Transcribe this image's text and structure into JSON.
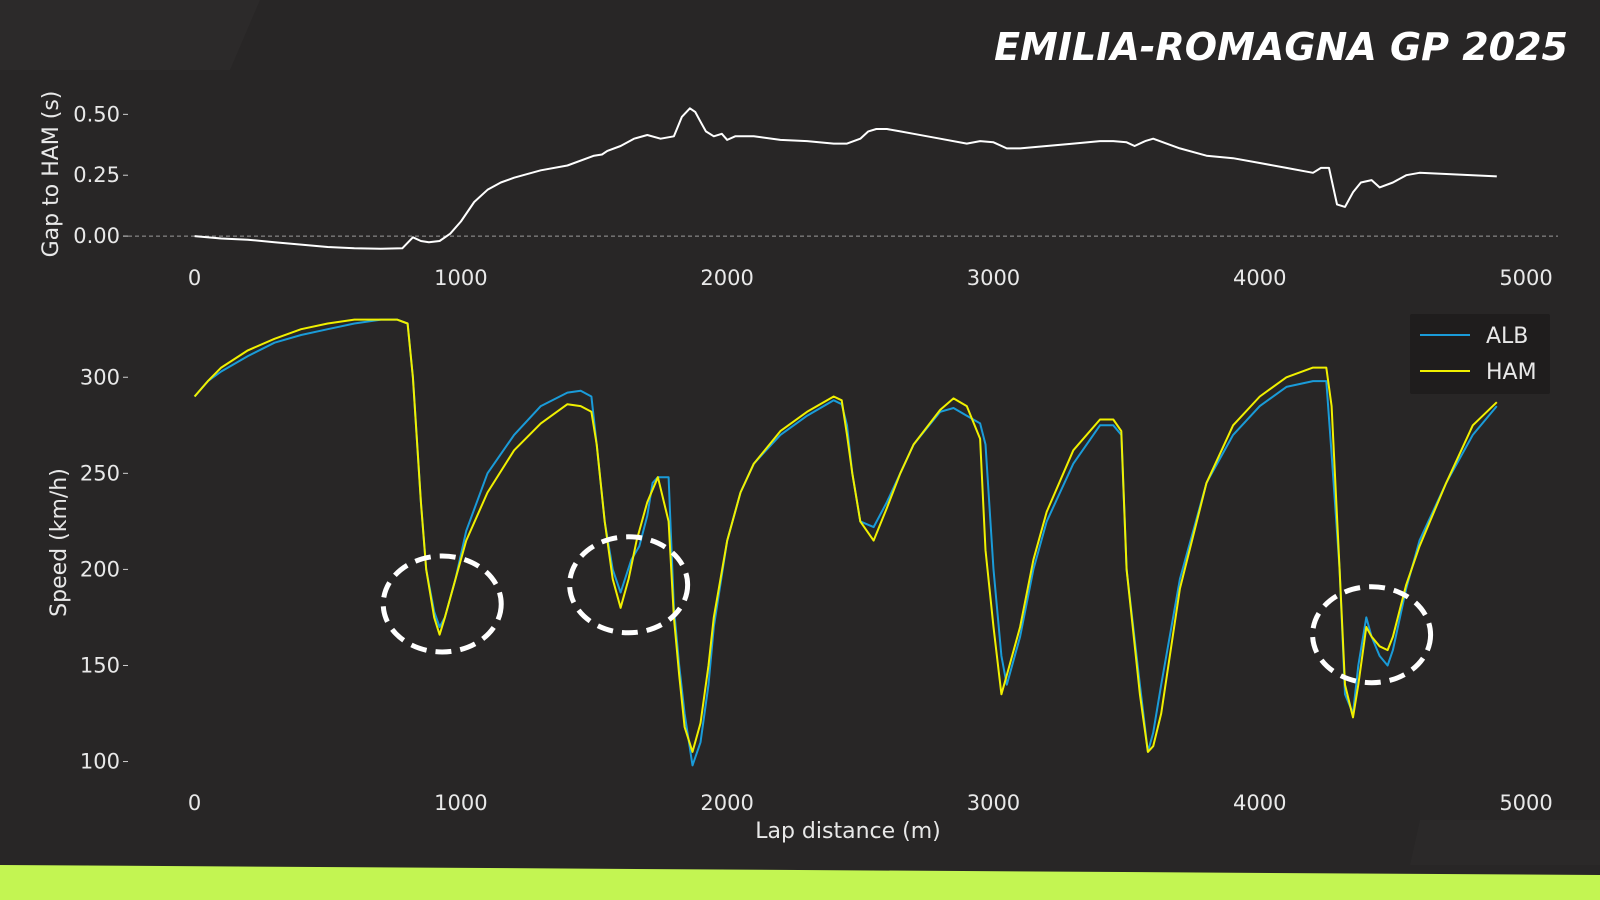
{
  "title": "EMILIA-ROMAGNA GP 2025",
  "colors": {
    "background": "#282626",
    "ALB": "#1a9bd8",
    "HAM": "#f0f000",
    "gap": "#ffffff",
    "band": "#c3f552",
    "circle": "#ffffff"
  },
  "chart_data": [
    {
      "type": "line",
      "ylabel": "Gap to HAM (s)",
      "xlabel": "",
      "xlim": [
        -250,
        5120
      ],
      "ylim": [
        -0.09,
        0.6
      ],
      "xticks": [
        "0",
        "1000",
        "2000",
        "3000",
        "4000",
        "5000"
      ],
      "yticks": [
        "0.00",
        "0.25",
        "0.50"
      ],
      "zero_line": true,
      "series": [
        {
          "key": "gap",
          "x": [
            0,
            100,
            200,
            300,
            400,
            500,
            600,
            700,
            780,
            820,
            850,
            880,
            920,
            960,
            1000,
            1050,
            1100,
            1150,
            1200,
            1300,
            1400,
            1500,
            1530,
            1550,
            1600,
            1650,
            1700,
            1750,
            1800,
            1830,
            1860,
            1880,
            1900,
            1920,
            1950,
            1980,
            2000,
            2030,
            2100,
            2200,
            2300,
            2400,
            2450,
            2500,
            2530,
            2560,
            2600,
            2650,
            2700,
            2800,
            2900,
            2950,
            3000,
            3050,
            3100,
            3200,
            3300,
            3400,
            3450,
            3500,
            3530,
            3570,
            3600,
            3650,
            3700,
            3800,
            3900,
            4000,
            4100,
            4200,
            4230,
            4260,
            4290,
            4320,
            4350,
            4380,
            4420,
            4450,
            4500,
            4550,
            4600,
            4700,
            4800,
            4890
          ],
          "y": [
            0,
            -0.01,
            -0.015,
            -0.025,
            -0.035,
            -0.045,
            -0.05,
            -0.052,
            -0.05,
            -0.005,
            -0.02,
            -0.025,
            -0.02,
            0.01,
            0.06,
            0.14,
            0.19,
            0.22,
            0.24,
            0.27,
            0.29,
            0.33,
            0.335,
            0.35,
            0.37,
            0.4,
            0.415,
            0.4,
            0.41,
            0.49,
            0.525,
            0.51,
            0.47,
            0.43,
            0.41,
            0.42,
            0.395,
            0.41,
            0.41,
            0.395,
            0.39,
            0.38,
            0.38,
            0.4,
            0.43,
            0.44,
            0.44,
            0.43,
            0.42,
            0.4,
            0.38,
            0.39,
            0.385,
            0.36,
            0.36,
            0.37,
            0.38,
            0.39,
            0.39,
            0.385,
            0.37,
            0.39,
            0.4,
            0.38,
            0.36,
            0.33,
            0.32,
            0.3,
            0.28,
            0.26,
            0.28,
            0.28,
            0.13,
            0.12,
            0.18,
            0.22,
            0.23,
            0.2,
            0.22,
            0.25,
            0.26,
            0.255,
            0.25,
            0.245
          ]
        }
      ]
    },
    {
      "type": "line",
      "ylabel": "Speed (km/h)",
      "xlabel": "Lap distance (m)",
      "xlim": [
        -250,
        5120
      ],
      "ylim": [
        93,
        335
      ],
      "xticks": [
        "0",
        "1000",
        "2000",
        "3000",
        "4000",
        "5000"
      ],
      "yticks": [
        "100",
        "150",
        "200",
        "250",
        "300"
      ],
      "legend_position": "top-right",
      "series": [
        {
          "name": "ALB",
          "key": "ALB",
          "x": [
            0,
            50,
            100,
            200,
            300,
            400,
            500,
            600,
            700,
            760,
            800,
            820,
            850,
            870,
            900,
            920,
            940,
            980,
            1020,
            1100,
            1200,
            1300,
            1400,
            1450,
            1490,
            1510,
            1540,
            1570,
            1600,
            1640,
            1670,
            1700,
            1720,
            1740,
            1780,
            1800,
            1820,
            1840,
            1870,
            1900,
            1930,
            1950,
            2000,
            2050,
            2100,
            2200,
            2300,
            2400,
            2430,
            2450,
            2470,
            2500,
            2550,
            2600,
            2650,
            2700,
            2800,
            2850,
            2900,
            2950,
            2970,
            3000,
            3030,
            3050,
            3100,
            3150,
            3200,
            3300,
            3400,
            3450,
            3480,
            3500,
            3550,
            3580,
            3600,
            3630,
            3700,
            3800,
            3900,
            4000,
            4100,
            4200,
            4250,
            4270,
            4300,
            4320,
            4350,
            4370,
            4400,
            4420,
            4450,
            4480,
            4500,
            4550,
            4600,
            4700,
            4800,
            4890
          ],
          "y": [
            290,
            298,
            303,
            311,
            318,
            322,
            325,
            328,
            330,
            330,
            328,
            300,
            235,
            200,
            178,
            170,
            175,
            195,
            220,
            250,
            270,
            285,
            292,
            293,
            290,
            265,
            225,
            200,
            188,
            205,
            212,
            228,
            245,
            248,
            248,
            180,
            150,
            125,
            98,
            110,
            140,
            170,
            215,
            240,
            255,
            270,
            280,
            288,
            286,
            275,
            250,
            225,
            222,
            235,
            250,
            265,
            282,
            284,
            280,
            276,
            265,
            200,
            155,
            140,
            165,
            200,
            225,
            255,
            275,
            275,
            270,
            200,
            140,
            105,
            115,
            140,
            195,
            245,
            270,
            285,
            295,
            298,
            298,
            260,
            200,
            135,
            125,
            150,
            175,
            165,
            155,
            150,
            158,
            190,
            215,
            245,
            270,
            285
          ]
        },
        {
          "name": "HAM",
          "key": "HAM",
          "x": [
            0,
            50,
            100,
            200,
            300,
            400,
            500,
            600,
            700,
            760,
            800,
            820,
            850,
            870,
            900,
            920,
            940,
            960,
            980,
            1020,
            1100,
            1200,
            1300,
            1400,
            1450,
            1490,
            1510,
            1540,
            1570,
            1600,
            1630,
            1660,
            1700,
            1740,
            1780,
            1800,
            1820,
            1840,
            1870,
            1900,
            1930,
            1950,
            2000,
            2050,
            2100,
            2200,
            2300,
            2400,
            2430,
            2450,
            2470,
            2500,
            2550,
            2600,
            2650,
            2700,
            2800,
            2850,
            2900,
            2950,
            2970,
            3000,
            3030,
            3050,
            3100,
            3150,
            3200,
            3300,
            3400,
            3450,
            3480,
            3500,
            3550,
            3580,
            3600,
            3630,
            3700,
            3800,
            3900,
            4000,
            4100,
            4200,
            4250,
            4270,
            4300,
            4320,
            4350,
            4370,
            4400,
            4420,
            4450,
            4480,
            4500,
            4550,
            4600,
            4700,
            4800,
            4890
          ],
          "y": [
            290,
            298,
            305,
            314,
            320,
            325,
            328,
            330,
            330,
            330,
            328,
            300,
            235,
            200,
            175,
            166,
            175,
            185,
            195,
            215,
            240,
            262,
            276,
            286,
            285,
            282,
            265,
            225,
            195,
            180,
            195,
            215,
            235,
            248,
            225,
            175,
            145,
            118,
            105,
            120,
            150,
            175,
            215,
            240,
            255,
            272,
            282,
            290,
            288,
            270,
            250,
            225,
            215,
            232,
            250,
            265,
            283,
            289,
            285,
            268,
            210,
            170,
            135,
            145,
            170,
            205,
            230,
            262,
            278,
            278,
            272,
            200,
            135,
            105,
            108,
            125,
            190,
            245,
            275,
            290,
            300,
            305,
            305,
            285,
            200,
            140,
            123,
            140,
            170,
            165,
            160,
            158,
            165,
            192,
            212,
            245,
            275,
            287
          ]
        }
      ]
    }
  ]
}
